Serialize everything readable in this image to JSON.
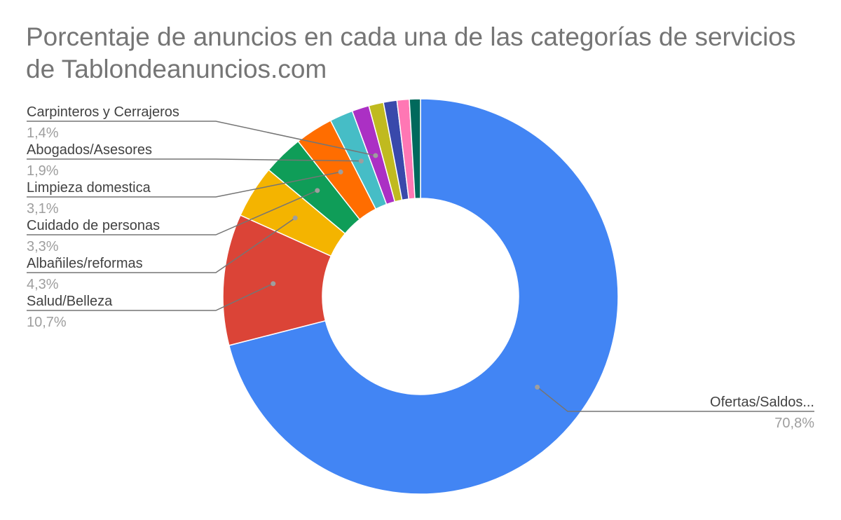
{
  "chart_data": {
    "type": "pie",
    "donut": true,
    "title": "Porcentaje de anuncios en cada una de las categorías de servicios de Tablondeanuncios.com",
    "slices": [
      {
        "label": "Ofertas/Saldos...",
        "value": 70.8,
        "value_label": "70,8%",
        "color": "#4285f4"
      },
      {
        "label": "Salud/Belleza",
        "value": 10.7,
        "value_label": "10,7%",
        "color": "#db4437"
      },
      {
        "label": "Albañiles/reformas",
        "value": 4.3,
        "value_label": "4,3%",
        "color": "#f4b400"
      },
      {
        "label": "Cuidado de personas",
        "value": 3.3,
        "value_label": "3,3%",
        "color": "#0f9d58"
      },
      {
        "label": "Limpieza domestica",
        "value": 3.1,
        "value_label": "3,1%",
        "color": "#ff6d00"
      },
      {
        "label": "Abogados/Asesores",
        "value": 1.9,
        "value_label": "1,9%",
        "color": "#46bdc6"
      },
      {
        "label": "Carpinteros y Cerrajeros",
        "value": 1.4,
        "value_label": "1,4%",
        "color": "#ab30c4"
      },
      {
        "value": 1.2,
        "color": "#c0ba1f"
      },
      {
        "value": 1.1,
        "color": "#3949ab"
      },
      {
        "value": 1.0,
        "color": "#ff77b4"
      },
      {
        "value": 0.9,
        "color": "#00695c"
      }
    ]
  }
}
